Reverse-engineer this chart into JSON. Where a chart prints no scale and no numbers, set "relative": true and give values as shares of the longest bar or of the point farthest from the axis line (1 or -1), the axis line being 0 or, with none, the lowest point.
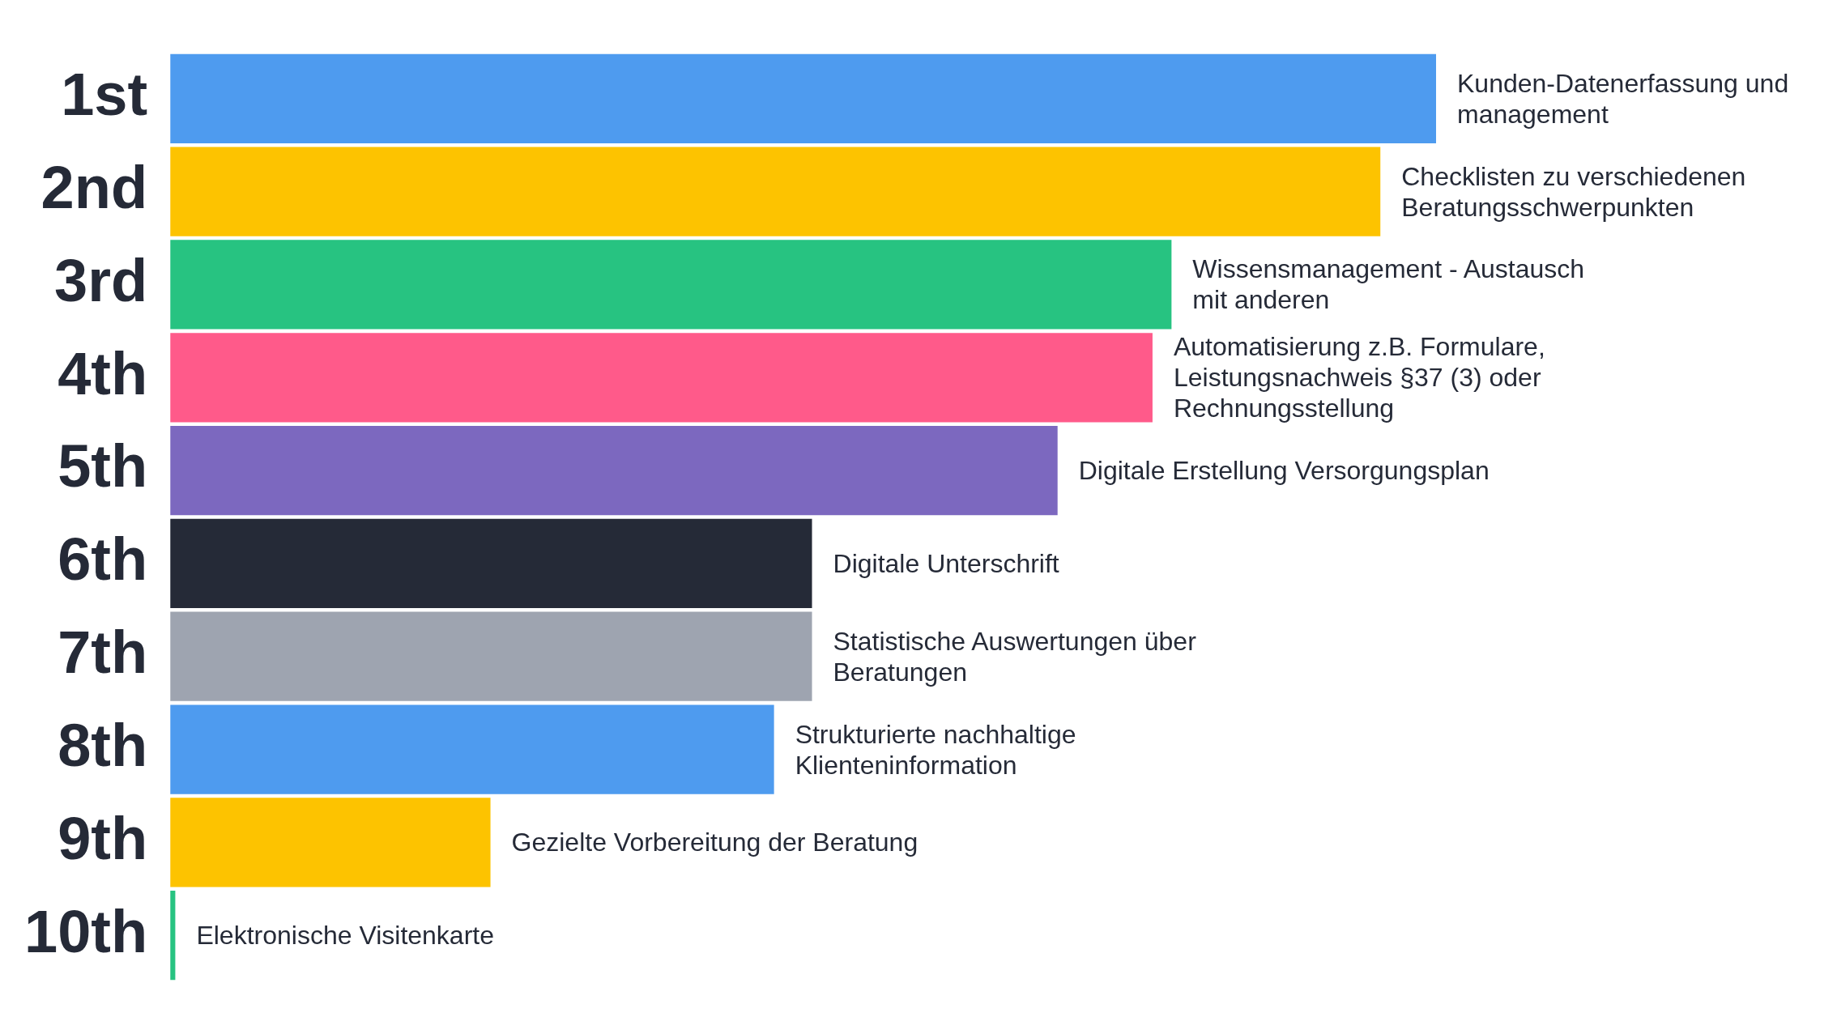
{
  "chart_data": {
    "type": "bar",
    "orientation": "horizontal",
    "relative": true,
    "grid": false,
    "legend": false,
    "categories": [
      "1st",
      "2nd",
      "3rd",
      "4th",
      "5th",
      "6th",
      "7th",
      "8th",
      "9th",
      "10th"
    ],
    "values": [
      1,
      0.956,
      0.791,
      0.776,
      0.701,
      0.507,
      0.507,
      0.477,
      0.253,
      0.004
    ],
    "colors": [
      "#4e9bef",
      "#fdc300",
      "#27c381",
      "#ff5a8a",
      "#7c68bf",
      "#252a37",
      "#9ea4b0",
      "#4e9bef",
      "#fdc300",
      "#27c381"
    ],
    "annotations": [
      {
        "text": "Kunden-Datenerfassung und management",
        "x": 1
      },
      {
        "text": "Checklisten zu verschiedenen Beratungsschwerpunkten",
        "x": 0.956
      },
      {
        "text": "Wissensmanagement - Austausch mit anderen",
        "x": 0.791
      },
      {
        "text": "Automatisierung z.B. Formulare, Leistungsnachweis §37 (3) oder Rechnungsstellung",
        "x": 0.776
      },
      {
        "text": "Digitale Erstellung Versorgungsplan",
        "x": 0.701
      },
      {
        "text": "Digitale Unterschrift",
        "x": 0.507
      },
      {
        "text": "Statistische Auswertungen über Beratungen",
        "x": 0.507
      },
      {
        "text": "Strukturierte nachhaltige Klienteninformation",
        "x": 0.477
      },
      {
        "text": "Gezielte Vorbereitung der Beratung",
        "x": 0.253
      },
      {
        "text": "Elektronische Visitenkarte",
        "x": 0.004
      }
    ]
  }
}
